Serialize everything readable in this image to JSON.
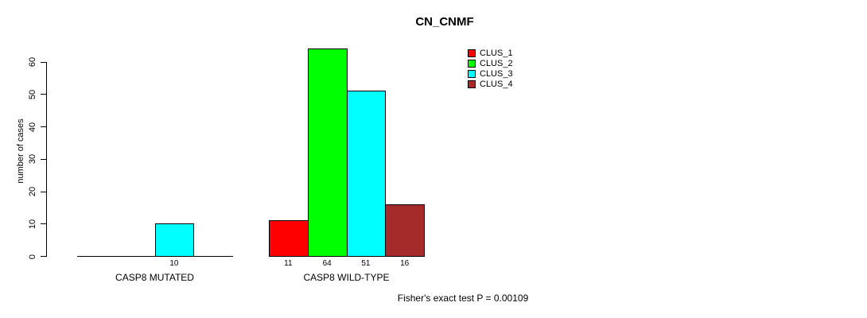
{
  "page": {
    "background_color": "#ffffff",
    "axis_color": "#000000",
    "text_color": "#000000"
  },
  "chart_data": {
    "type": "bar",
    "title": "CN_CNMF",
    "xlabel": "",
    "ylabel": "number of cases",
    "ylim": [
      0,
      60
    ],
    "yticks": [
      0,
      10,
      20,
      30,
      40,
      50,
      60
    ],
    "grid": false,
    "legend_position": "top-right",
    "categories": [
      "CASP8 MUTATED",
      "CASP8 WILD-TYPE"
    ],
    "series": [
      {
        "name": "CLUS_1",
        "color": "#FF0000",
        "values": [
          0,
          11
        ]
      },
      {
        "name": "CLUS_2",
        "color": "#00FF00",
        "values": [
          0,
          64
        ]
      },
      {
        "name": "CLUS_3",
        "color": "#00FFFF",
        "values": [
          10,
          51
        ]
      },
      {
        "name": "CLUS_4",
        "color": "#A52A2A",
        "values": [
          0,
          16
        ]
      }
    ],
    "bar_value_labels_visible": [
      [
        "",
        "",
        "10",
        ""
      ],
      [
        "11",
        "64",
        "51",
        "16"
      ]
    ],
    "annotation": "Fisher's exact test P = 0.00109"
  }
}
